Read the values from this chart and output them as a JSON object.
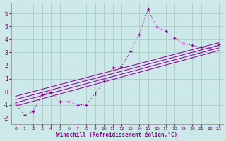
{
  "background_color": "#cce8e8",
  "grid_color": "#aacccc",
  "line_color": "#990099",
  "xlabel": "Windchill (Refroidissement éolien,°C)",
  "xlim": [
    -0.5,
    23.5
  ],
  "ylim": [
    -2.5,
    6.8
  ],
  "xticks": [
    0,
    1,
    2,
    3,
    4,
    5,
    6,
    7,
    8,
    9,
    10,
    11,
    12,
    13,
    14,
    15,
    16,
    17,
    18,
    19,
    20,
    21,
    22,
    23
  ],
  "yticks": [
    -2,
    -1,
    0,
    1,
    2,
    3,
    4,
    5,
    6
  ],
  "scatter_x": [
    0,
    1,
    2,
    3,
    4,
    5,
    6,
    7,
    8,
    9,
    10,
    11,
    12,
    13,
    14,
    15,
    16,
    17,
    18,
    19,
    20,
    21,
    22,
    23
  ],
  "scatter_y": [
    -0.9,
    -1.8,
    -1.5,
    -0.2,
    -0.05,
    -0.75,
    -0.75,
    -1.0,
    -1.0,
    -0.15,
    0.8,
    1.85,
    1.9,
    3.1,
    4.4,
    6.3,
    4.95,
    4.65,
    4.1,
    3.7,
    3.55,
    3.4,
    3.3,
    3.6
  ],
  "reg_lines": [
    {
      "x0": 0,
      "y0": -1.1,
      "x1": 23,
      "y1": 3.15
    },
    {
      "x0": 0,
      "y0": -0.85,
      "x1": 23,
      "y1": 3.35
    },
    {
      "x0": 0,
      "y0": -0.6,
      "x1": 23,
      "y1": 3.55
    },
    {
      "x0": 0,
      "y0": -0.35,
      "x1": 23,
      "y1": 3.75
    }
  ]
}
